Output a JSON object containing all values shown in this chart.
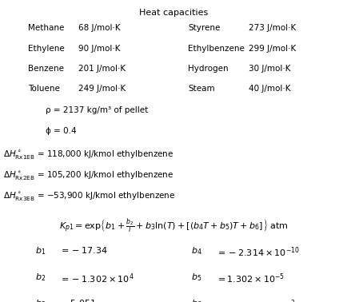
{
  "title": "Heat capacities",
  "bg_color": "#ffffff",
  "text_color": "#000000",
  "rows": [
    [
      "Methane",
      "68 J/mol·K",
      "Styrene",
      "273 J/mol·K"
    ],
    [
      "Ethylene",
      "90 J/mol·K",
      "Ethylbenzene",
      "299 J/mol·K"
    ],
    [
      "Benzene",
      "201 J/mol·K",
      "Hydrogen",
      "30 J/mol·K"
    ],
    [
      "Toluene",
      "249 J/mol·K",
      "Steam",
      "40 J/mol·K"
    ]
  ],
  "rho_line": "ρ = 2137 kg/m³ of pellet",
  "phi_line": "ϕ = 0.4"
}
